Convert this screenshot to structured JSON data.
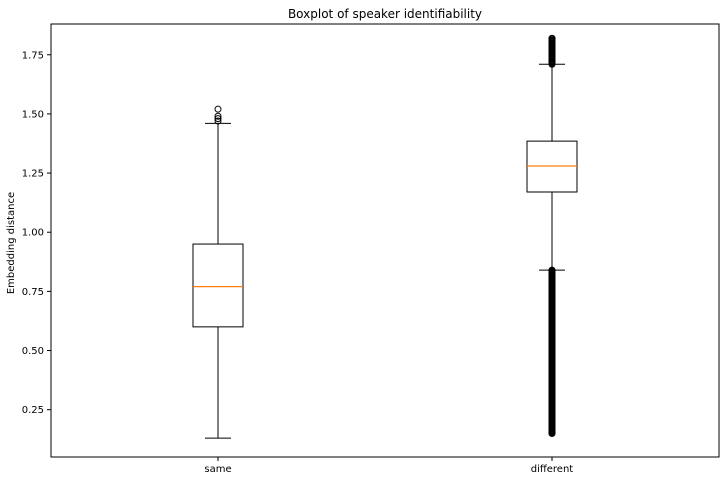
{
  "chart_data": {
    "type": "boxplot",
    "title": "Boxplot of speaker identifiability",
    "xlabel": "",
    "ylabel": "Embedding distance",
    "categories": [
      "same",
      "different"
    ],
    "ylim": [
      0.05,
      1.88
    ],
    "yticks": [
      0.25,
      0.5,
      0.75,
      1.0,
      1.25,
      1.5,
      1.75
    ],
    "ytick_labels": [
      "0.25",
      "0.50",
      "0.75",
      "1.00",
      "1.25",
      "1.50",
      "1.75"
    ],
    "grid": false,
    "boxes": [
      {
        "label": "same",
        "whisker_low": 0.13,
        "q1": 0.6,
        "median": 0.77,
        "q3": 0.95,
        "whisker_high": 1.46,
        "outliers": [
          1.47,
          1.48,
          1.49,
          1.52
        ]
      },
      {
        "label": "different",
        "whisker_low": 0.84,
        "q1": 1.17,
        "median": 1.28,
        "q3": 1.385,
        "whisker_high": 1.71,
        "outliers_high_range": [
          1.71,
          1.82
        ],
        "outliers_low_range": [
          0.15,
          0.84
        ],
        "outliers": [
          1.72,
          1.74,
          1.76,
          1.78,
          1.8,
          1.81,
          1.82,
          0.15,
          0.16,
          0.18,
          0.2
        ]
      }
    ],
    "colors": {
      "box": "#000000",
      "median": "#ff7f0e",
      "background": "#ffffff"
    }
  }
}
